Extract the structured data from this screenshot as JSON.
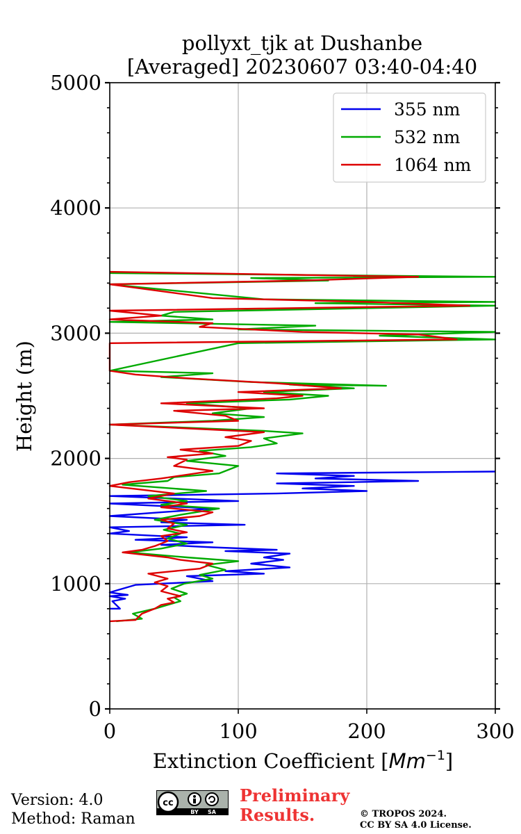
{
  "chart_data": {
    "type": "line",
    "title_line1": "pollyxt_tjk at Dushanbe",
    "title_line2": "[Averaged] 20230607 03:40-04:40",
    "xlabel": "Extinction Coefficient [",
    "xlabel_unit": "Mm",
    "xlabel_exp": "−1",
    "xlabel_close": "]",
    "ylabel": "Height (m)",
    "xlim": [
      0,
      300
    ],
    "ylim": [
      0,
      5000
    ],
    "xticks": [
      0,
      100,
      200,
      300
    ],
    "yticks": [
      0,
      1000,
      2000,
      3000,
      4000,
      5000
    ],
    "xtick_labels": [
      "0",
      "100",
      "200",
      "300"
    ],
    "ytick_labels": [
      "0",
      "1000",
      "2000",
      "3000",
      "4000",
      "5000"
    ],
    "grid": true,
    "legend_position": "top-right",
    "series": [
      {
        "name": "355 nm",
        "color": "#0000ee",
        "points": [
          [
            0,
            800
          ],
          [
            8,
            800
          ],
          [
            2,
            860
          ],
          [
            12,
            880
          ],
          [
            0,
            900
          ],
          [
            14,
            910
          ],
          [
            0,
            930
          ],
          [
            20,
            990
          ],
          [
            80,
            1020
          ],
          [
            60,
            1060
          ],
          [
            120,
            1080
          ],
          [
            90,
            1100
          ],
          [
            140,
            1130
          ],
          [
            110,
            1160
          ],
          [
            135,
            1190
          ],
          [
            120,
            1210
          ],
          [
            140,
            1240
          ],
          [
            90,
            1260
          ],
          [
            130,
            1270
          ],
          [
            80,
            1290
          ],
          [
            40,
            1310
          ],
          [
            80,
            1330
          ],
          [
            20,
            1350
          ],
          [
            60,
            1370
          ],
          [
            0,
            1400
          ],
          [
            15,
            1420
          ],
          [
            0,
            1450
          ],
          [
            105,
            1470
          ],
          [
            40,
            1490
          ],
          [
            60,
            1510
          ],
          [
            0,
            1540
          ],
          [
            40,
            1570
          ],
          [
            80,
            1600
          ],
          [
            0,
            1640
          ],
          [
            100,
            1660
          ],
          [
            0,
            1700
          ],
          [
            130,
            1720
          ],
          [
            200,
            1740
          ],
          [
            150,
            1760
          ],
          [
            190,
            1780
          ],
          [
            130,
            1800
          ],
          [
            240,
            1820
          ],
          [
            160,
            1840
          ],
          [
            190,
            1860
          ],
          [
            130,
            1880
          ],
          [
            300,
            1895
          ]
        ]
      },
      {
        "name": "532 nm",
        "color": "#00aa00",
        "points": [
          [
            5,
            700
          ],
          [
            25,
            720
          ],
          [
            18,
            760
          ],
          [
            35,
            800
          ],
          [
            45,
            830
          ],
          [
            55,
            860
          ],
          [
            50,
            890
          ],
          [
            60,
            920
          ],
          [
            48,
            960
          ],
          [
            58,
            1000
          ],
          [
            80,
            1040
          ],
          [
            70,
            1070
          ],
          [
            90,
            1110
          ],
          [
            75,
            1150
          ],
          [
            100,
            1180
          ],
          [
            60,
            1210
          ],
          [
            15,
            1250
          ],
          [
            40,
            1280
          ],
          [
            60,
            1320
          ],
          [
            45,
            1360
          ],
          [
            55,
            1400
          ],
          [
            42,
            1430
          ],
          [
            60,
            1470
          ],
          [
            35,
            1510
          ],
          [
            55,
            1550
          ],
          [
            85,
            1600
          ],
          [
            40,
            1630
          ],
          [
            60,
            1660
          ],
          [
            30,
            1700
          ],
          [
            75,
            1740
          ],
          [
            10,
            1790
          ],
          [
            45,
            1820
          ],
          [
            50,
            1850
          ],
          [
            85,
            1880
          ],
          [
            100,
            1940
          ],
          [
            60,
            1980
          ],
          [
            90,
            2020
          ],
          [
            70,
            2060
          ],
          [
            110,
            2090
          ],
          [
            130,
            2120
          ],
          [
            120,
            2160
          ],
          [
            150,
            2200
          ],
          [
            120,
            2220
          ],
          [
            0,
            2270
          ],
          [
            80,
            2300
          ],
          [
            120,
            2330
          ],
          [
            80,
            2360
          ],
          [
            110,
            2400
          ],
          [
            60,
            2440
          ],
          [
            140,
            2470
          ],
          [
            170,
            2500
          ],
          [
            120,
            2530
          ],
          [
            190,
            2560
          ],
          [
            140,
            2590
          ],
          [
            215,
            2580
          ],
          [
            110,
            2610
          ],
          [
            40,
            2650
          ],
          [
            80,
            2680
          ],
          [
            0,
            2700
          ],
          [
            100,
            2920
          ],
          [
            300,
            2950
          ],
          [
            210,
            2980
          ],
          [
            300,
            3010
          ],
          [
            100,
            3030
          ],
          [
            160,
            3060
          ],
          [
            0,
            3090
          ],
          [
            80,
            3110
          ],
          [
            40,
            3140
          ],
          [
            50,
            3170
          ],
          [
            300,
            3220
          ],
          [
            160,
            3240
          ],
          [
            300,
            3250
          ],
          [
            120,
            3270
          ],
          [
            0,
            3390
          ],
          [
            170,
            3420
          ],
          [
            110,
            3440
          ],
          [
            300,
            3450
          ],
          [
            0,
            3480
          ]
        ]
      },
      {
        "name": "1064 nm",
        "color": "#dd0000",
        "points": [
          [
            0,
            700
          ],
          [
            20,
            710
          ],
          [
            25,
            760
          ],
          [
            35,
            800
          ],
          [
            40,
            830
          ],
          [
            50,
            850
          ],
          [
            45,
            880
          ],
          [
            55,
            900
          ],
          [
            40,
            940
          ],
          [
            45,
            980
          ],
          [
            35,
            1010
          ],
          [
            45,
            1040
          ],
          [
            30,
            1080
          ],
          [
            50,
            1100
          ],
          [
            70,
            1120
          ],
          [
            80,
            1160
          ],
          [
            55,
            1190
          ],
          [
            45,
            1210
          ],
          [
            10,
            1250
          ],
          [
            25,
            1270
          ],
          [
            35,
            1300
          ],
          [
            45,
            1340
          ],
          [
            40,
            1380
          ],
          [
            60,
            1410
          ],
          [
            45,
            1440
          ],
          [
            50,
            1480
          ],
          [
            40,
            1510
          ],
          [
            70,
            1540
          ],
          [
            80,
            1570
          ],
          [
            40,
            1610
          ],
          [
            60,
            1640
          ],
          [
            30,
            1680
          ],
          [
            50,
            1720
          ],
          [
            0,
            1780
          ],
          [
            15,
            1810
          ],
          [
            40,
            1840
          ],
          [
            60,
            1870
          ],
          [
            80,
            1900
          ],
          [
            50,
            1940
          ],
          [
            60,
            1990
          ],
          [
            45,
            2010
          ],
          [
            80,
            2040
          ],
          [
            55,
            2070
          ],
          [
            100,
            2100
          ],
          [
            110,
            2140
          ],
          [
            90,
            2170
          ],
          [
            120,
            2210
          ],
          [
            0,
            2270
          ],
          [
            100,
            2300
          ],
          [
            90,
            2340
          ],
          [
            50,
            2380
          ],
          [
            120,
            2400
          ],
          [
            40,
            2440
          ],
          [
            130,
            2480
          ],
          [
            150,
            2500
          ],
          [
            100,
            2530
          ],
          [
            180,
            2560
          ],
          [
            130,
            2600
          ],
          [
            60,
            2640
          ],
          [
            20,
            2670
          ],
          [
            0,
            2700
          ],
          [
            0,
            2920
          ],
          [
            270,
            2950
          ],
          [
            240,
            2990
          ],
          [
            150,
            3010
          ],
          [
            70,
            3050
          ],
          [
            80,
            3080
          ],
          [
            0,
            3110
          ],
          [
            40,
            3140
          ],
          [
            0,
            3180
          ],
          [
            280,
            3220
          ],
          [
            200,
            3250
          ],
          [
            80,
            3280
          ],
          [
            0,
            3390
          ],
          [
            150,
            3420
          ],
          [
            240,
            3450
          ],
          [
            0,
            3490
          ]
        ]
      }
    ]
  },
  "footer": {
    "version": "Version: 4.0",
    "method": "Method: Raman",
    "preliminary_line1": "Preliminary",
    "preliminary_line2": "Results.",
    "copyright_line1": "© TROPOS 2024.",
    "copyright_line2": "CC BY SA 4.0 License.",
    "cc_label": "cc",
    "cc_by": "BY",
    "cc_sa": "SA"
  }
}
